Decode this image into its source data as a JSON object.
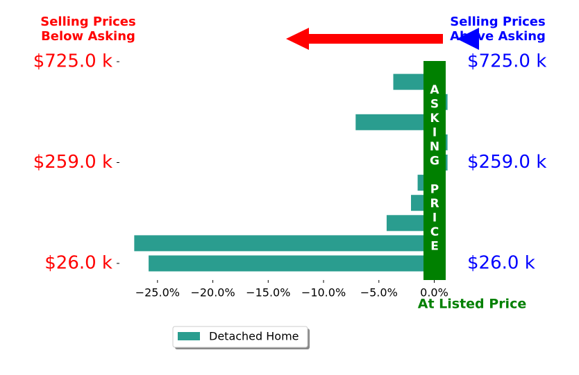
{
  "chart_data": {
    "type": "barh",
    "categories": [
      "$26.0 k",
      null,
      null,
      null,
      null,
      "$259.0 k",
      null,
      null,
      null,
      null,
      "$725.0 k"
    ],
    "series": [
      {
        "name": "Detached Home",
        "color": "#2a9d8f",
        "values": [
          -25.8,
          -27.1,
          -4.3,
          -2.1,
          -1.5,
          1.2,
          1.2,
          -7.1,
          1.2,
          -3.7,
          null
        ]
      }
    ],
    "xlim": [
      -28,
      1.6
    ],
    "xticks": [
      {
        "value": -25,
        "label": "−25.0%"
      },
      {
        "value": -20,
        "label": "−20.0%"
      },
      {
        "value": -15,
        "label": "−15.0%"
      },
      {
        "value": -10,
        "label": "−10.0%"
      },
      {
        "value": -5,
        "label": "−5.0%"
      },
      {
        "value": 0,
        "label": "0.0%"
      }
    ],
    "left_label_color": "#ff0000",
    "right_label_color": "#0000ff",
    "annotations": {
      "below": [
        "Selling Prices",
        "Below Asking"
      ],
      "above": [
        "Selling Prices",
        "Above Asking"
      ],
      "listed": "At Listed Price",
      "asking": "ASKING PRICE"
    },
    "legend": "lower center"
  }
}
